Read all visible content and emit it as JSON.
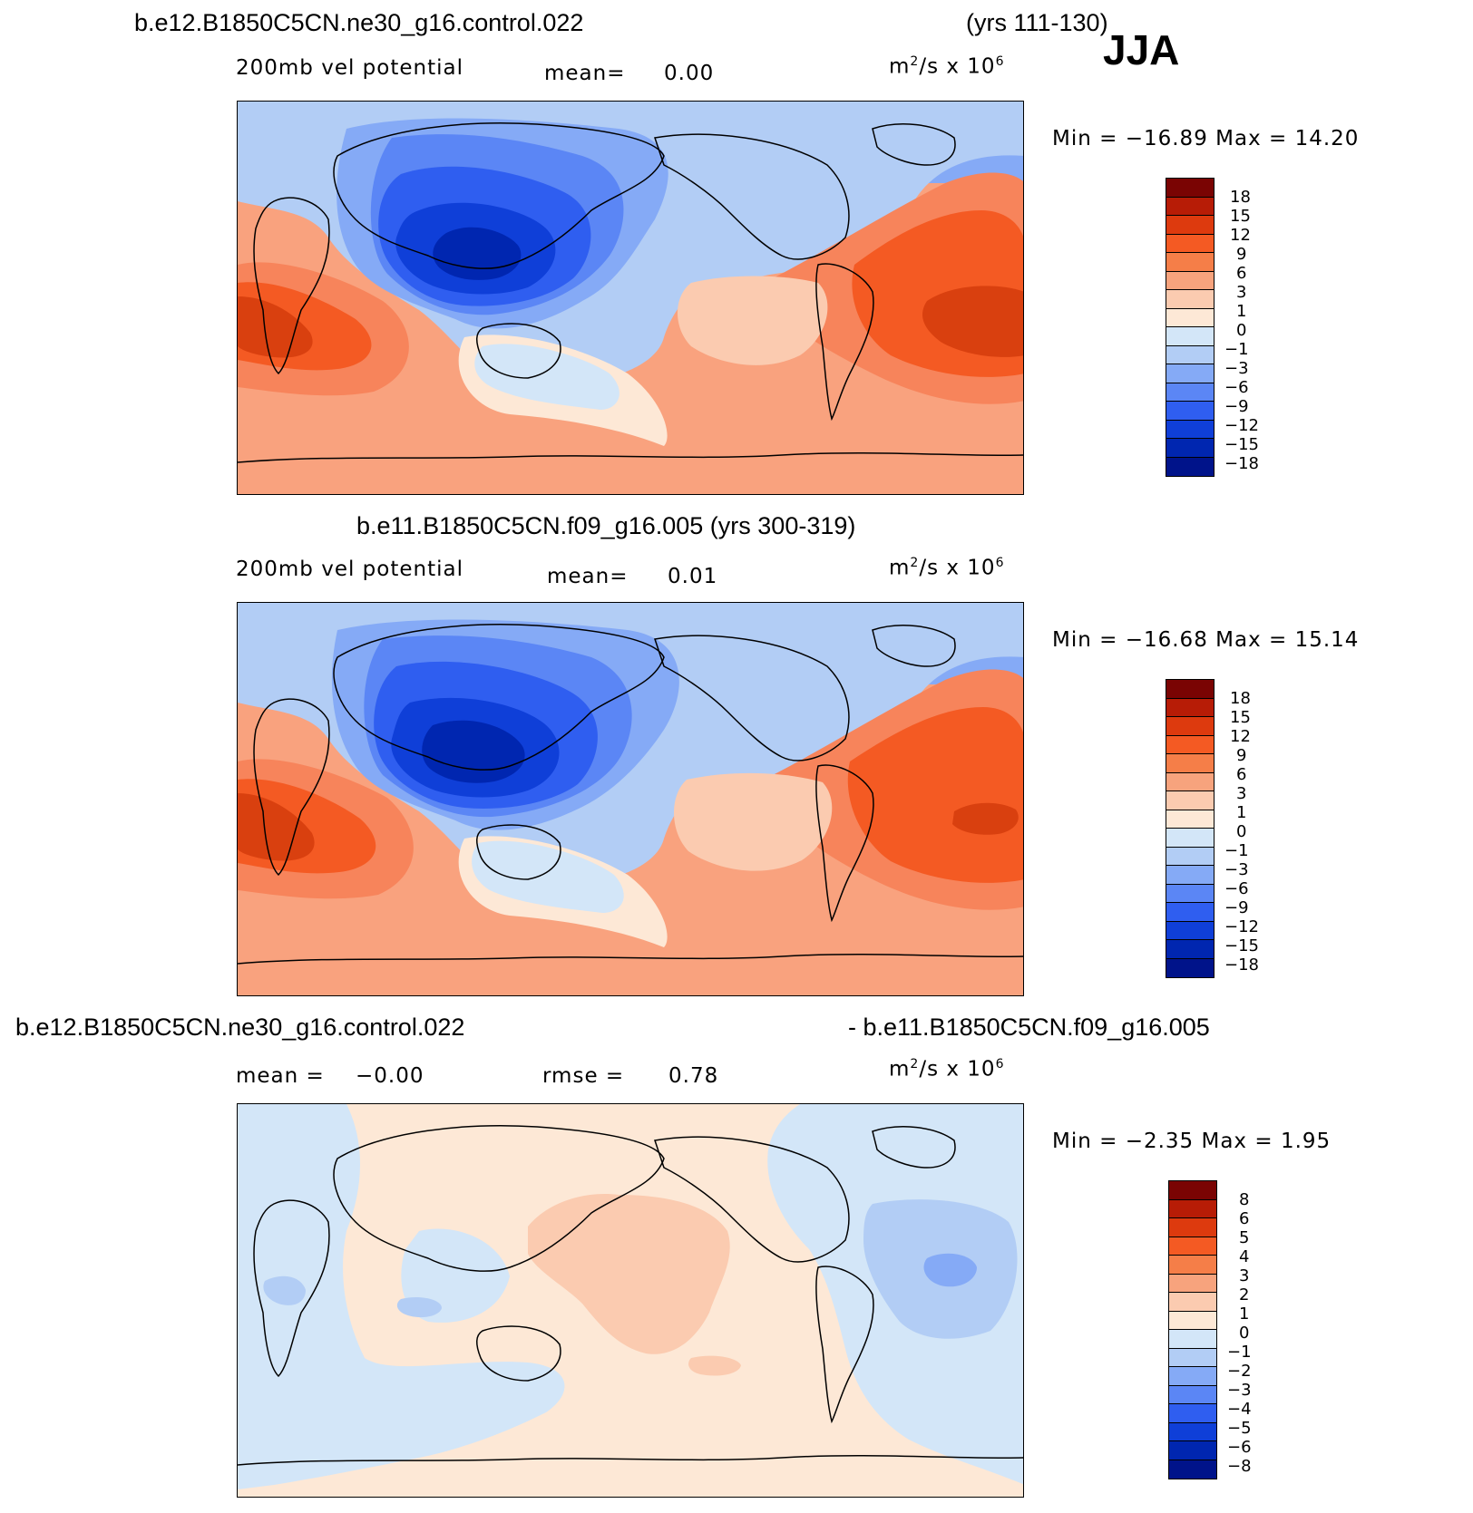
{
  "season": "JJA",
  "panels": [
    {
      "title_left": "b.e12.B1850C5CN.ne30_g16.control.022",
      "title_right": "(yrs 111-130)",
      "variable": "200mb vel potential",
      "stat1_label": "mean=",
      "stat1_value": "0.00",
      "units_base": "m",
      "units_exp": "2",
      "units_mid": "/s x 10",
      "units_exp2": "6",
      "minmax": "Min = −16.89 Max =   14.20",
      "colorbar_labels": [
        "18",
        "15",
        "12",
        "9",
        "6",
        "3",
        "1",
        "0",
        "−1",
        "−3",
        "−6",
        "−9",
        "−12",
        "−15",
        "−18"
      ]
    },
    {
      "title_center": "b.e11.B1850C5CN.f09_g16.005 (yrs 300-319)",
      "variable": "200mb vel potential",
      "stat1_label": "mean=",
      "stat1_value": "0.01",
      "units_base": "m",
      "units_exp": "2",
      "units_mid": "/s x 10",
      "units_exp2": "6",
      "minmax": "Min = −16.68 Max =   15.14",
      "colorbar_labels": [
        "18",
        "15",
        "12",
        "9",
        "6",
        "3",
        "1",
        "0",
        "−1",
        "−3",
        "−6",
        "−9",
        "−12",
        "−15",
        "−18"
      ]
    },
    {
      "title_left": "b.e12.B1850C5CN.ne30_g16.control.022",
      "title_right": "- b.e11.B1850C5CN.f09_g16.005",
      "stat1_label": "mean =",
      "stat1_value": "−0.00",
      "stat2_label": "rmse =",
      "stat2_value": "0.78",
      "units_base": "m",
      "units_exp": "2",
      "units_mid": "/s x 10",
      "units_exp2": "6",
      "minmax": "Min =   −2.35 Max =    1.95",
      "colorbar_labels": [
        "8",
        "6",
        "5",
        "4",
        "3",
        "2",
        "1",
        "0",
        "−1",
        "−2",
        "−3",
        "−4",
        "−5",
        "−6",
        "−8"
      ]
    }
  ],
  "colorbar_colors": [
    "#7a0403",
    "#b71c06",
    "#dd3a0e",
    "#f45a23",
    "#f57e48",
    "#f7a37d",
    "#fbcbb0",
    "#fde8d6",
    "#d3e6f8",
    "#b2cdf5",
    "#85aaf6",
    "#5b86f5",
    "#2f5ef0",
    "#0f3fd8",
    "#0026b0",
    "#00138a"
  ],
  "field_colors": {
    "deep_red": "#d9400f",
    "red": "#f45a23",
    "orange": "#f7845b",
    "salmon": "#f9a27e",
    "peach": "#fbcbb0",
    "cream": "#fde8d6",
    "pale_blue": "#d3e6f8",
    "light_blue": "#b2cdf5",
    "blue": "#85aaf6",
    "mid_blue": "#5b86f5",
    "strong_blue": "#2f5ef0",
    "deep_blue": "#0f3fd8",
    "navy": "#0026b0"
  }
}
